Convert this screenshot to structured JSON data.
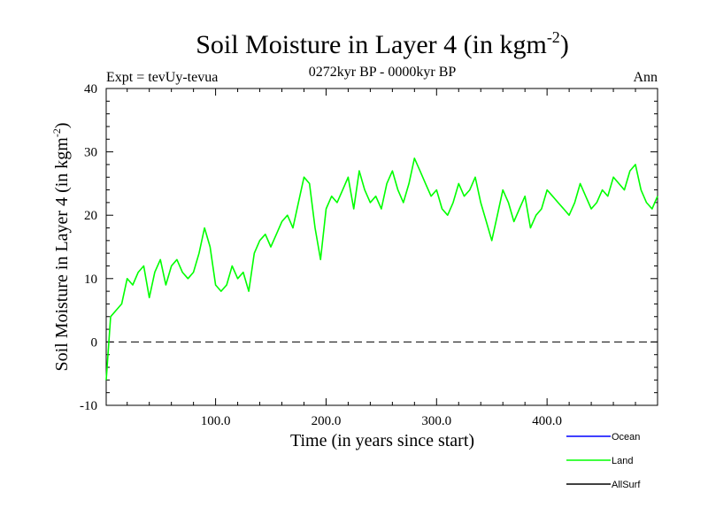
{
  "chart_data": {
    "type": "line",
    "title_main": "Soil Moisture in Layer 4 (in kgm",
    "title_sup": "-2",
    "title_close": ")",
    "subtitle": "0272kyr BP - 0000kyr BP",
    "expt_label": "Expt = tevUy-tevua",
    "season_label": "Ann",
    "xlabel": "Time (in years since start)",
    "ylabel_main": "Soil Moisture in Layer 4 (in kgm",
    "ylabel_sup": "-2",
    "ylabel_close": ")",
    "xlim": [
      1,
      500
    ],
    "ylim": [
      -10,
      40
    ],
    "x_ticks": [
      100,
      200,
      300,
      400
    ],
    "x_tick_labels": [
      "100.0",
      "200.0",
      "300.0",
      "400.0"
    ],
    "y_ticks": [
      -10,
      0,
      10,
      20,
      30,
      40
    ],
    "y_tick_labels": [
      "-10",
      "0",
      "10",
      "20",
      "30",
      "40"
    ],
    "zero_line": true,
    "grid": false,
    "legend_placement": "bottom-right",
    "legend": [
      {
        "name": "Ocean",
        "color": "#0000ff"
      },
      {
        "name": "Land",
        "color": "#00ff00"
      },
      {
        "name": "AllSurf",
        "color": "#000000"
      }
    ],
    "series": [
      {
        "name": "Land",
        "color": "#00ff00",
        "x": [
          1,
          5,
          10,
          15,
          20,
          25,
          30,
          35,
          40,
          45,
          50,
          55,
          60,
          65,
          70,
          75,
          80,
          85,
          90,
          95,
          100,
          105,
          110,
          115,
          120,
          125,
          130,
          135,
          140,
          145,
          150,
          155,
          160,
          165,
          170,
          175,
          180,
          185,
          190,
          195,
          200,
          205,
          210,
          215,
          220,
          225,
          230,
          235,
          240,
          245,
          250,
          255,
          260,
          265,
          270,
          275,
          280,
          285,
          290,
          295,
          300,
          305,
          310,
          315,
          320,
          325,
          330,
          335,
          340,
          345,
          350,
          355,
          360,
          365,
          370,
          375,
          380,
          385,
          390,
          395,
          400,
          405,
          410,
          415,
          420,
          425,
          430,
          435,
          440,
          445,
          450,
          455,
          460,
          465,
          470,
          475,
          480,
          485,
          490,
          495,
          500
        ],
        "values": [
          -6,
          4,
          5,
          6,
          10,
          9,
          11,
          12,
          7,
          11,
          13,
          9,
          12,
          13,
          11,
          10,
          11,
          14,
          18,
          15,
          9,
          8,
          9,
          12,
          10,
          11,
          8,
          14,
          16,
          17,
          15,
          17,
          19,
          20,
          18,
          22,
          26,
          25,
          18,
          13,
          21,
          23,
          22,
          24,
          26,
          21,
          27,
          24,
          22,
          23,
          21,
          25,
          27,
          24,
          22,
          25,
          29,
          27,
          25,
          23,
          24,
          21,
          20,
          22,
          25,
          23,
          24,
          26,
          22,
          19,
          16,
          20,
          24,
          22,
          19,
          21,
          23,
          18,
          20,
          21,
          24,
          23,
          22,
          21,
          20,
          22,
          25,
          23,
          21,
          22,
          24,
          23,
          26,
          25,
          24,
          27,
          28,
          24,
          22,
          21,
          23
        ]
      }
    ]
  }
}
